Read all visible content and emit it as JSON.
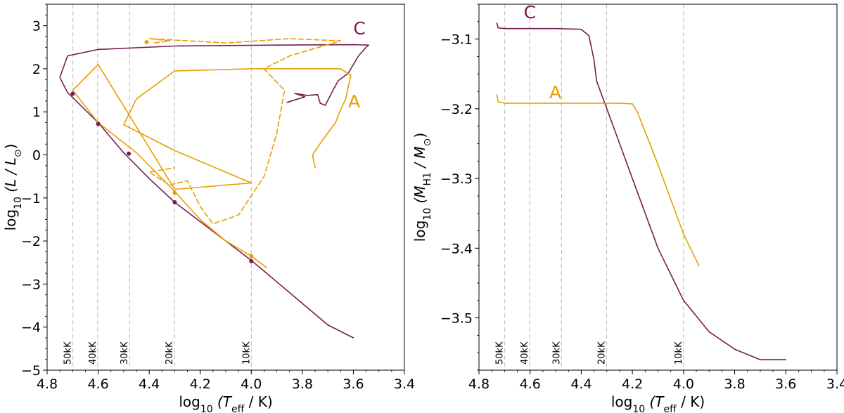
{
  "chart_data": [
    {
      "type": "line",
      "panel": "left",
      "xlabel_prefix": "log",
      "xlabel_sub": "10",
      "xlabel_body": " (T",
      "xlabel_body_sub": "eff",
      "xlabel_suffix": " / K)",
      "ylabel_prefix": "log",
      "ylabel_sub": "10",
      "ylabel_body": " (L / L",
      "ylabel_body_sub": "⊙",
      "ylabel_suffix": ")",
      "xlim": [
        4.8,
        3.4
      ],
      "ylim": [
        -5,
        3.5
      ],
      "xticks": [
        4.8,
        4.6,
        4.4,
        4.2,
        4.0,
        3.8,
        3.6,
        3.4
      ],
      "xtick_labels": [
        "4.8",
        "4.6",
        "4.4",
        "4.2",
        "4.0",
        "3.8",
        "3.6",
        "3.4"
      ],
      "yticks": [
        3,
        2,
        1,
        0,
        -1,
        -2,
        -3,
        -4,
        -5
      ],
      "ytick_labels": [
        "3",
        "2",
        "1",
        "0",
        "−1",
        "−2",
        "−3",
        "−4",
        "−5"
      ],
      "vlines": [
        {
          "x": 4.699,
          "label": "50kK"
        },
        {
          "x": 4.602,
          "label": "40kK"
        },
        {
          "x": 4.477,
          "label": "30kK"
        },
        {
          "x": 4.301,
          "label": "20kK"
        },
        {
          "x": 4.0,
          "label": "10kK"
        }
      ],
      "series": [
        {
          "name": "C",
          "color": "#7a1a50",
          "style": "solid",
          "label_pos": [
            3.6,
            2.8
          ],
          "x": [
            3.86,
            3.79,
            3.83,
            3.78,
            3.74,
            3.73,
            3.71,
            3.68,
            3.66,
            3.62,
            3.58,
            3.55,
            3.54,
            3.6,
            3.9,
            4.3,
            4.6,
            4.72,
            4.75,
            4.72,
            4.6,
            4.5,
            4.4,
            4.3,
            4.1,
            4.0,
            3.9,
            3.8,
            3.7,
            3.6
          ],
          "y": [
            1.22,
            1.35,
            1.43,
            1.38,
            1.4,
            1.2,
            1.15,
            1.5,
            1.72,
            1.9,
            2.3,
            2.5,
            2.55,
            2.56,
            2.55,
            2.53,
            2.45,
            2.3,
            1.8,
            1.45,
            0.75,
            0.05,
            -0.55,
            -1.1,
            -2.0,
            -2.45,
            -2.95,
            -3.45,
            -3.95,
            -4.25
          ]
        },
        {
          "name": "A",
          "color": "#e69f00",
          "style": "solid",
          "label_pos": [
            3.62,
            1.1
          ],
          "x": [
            3.75,
            3.76,
            3.72,
            3.67,
            3.65,
            3.63,
            3.61,
            3.65,
            4.0,
            4.3,
            4.45,
            4.5,
            4.3,
            4.0,
            4.3,
            4.6,
            4.7,
            4.6,
            4.45,
            4.3,
            4.2,
            4.1,
            4.0,
            3.94
          ],
          "y": [
            -0.3,
            0.0,
            0.35,
            0.75,
            1.05,
            1.3,
            1.85,
            2.0,
            2.0,
            1.95,
            1.3,
            0.7,
            0.1,
            -0.65,
            -0.8,
            2.1,
            1.5,
            0.75,
            0.05,
            -0.85,
            -1.5,
            -2.0,
            -2.35,
            -2.62
          ]
        },
        {
          "name": "A-dashed",
          "color": "#e69f00",
          "style": "dashed",
          "x": [
            4.38,
            4.32,
            4.4,
            4.1,
            3.85,
            3.65,
            3.85,
            3.95,
            3.87,
            3.9,
            3.95,
            4.05,
            4.15,
            4.2,
            4.25,
            4.32,
            4.4,
            4.3
          ],
          "y": [
            2.6,
            2.65,
            2.7,
            2.6,
            2.7,
            2.65,
            2.3,
            2.0,
            1.5,
            0.5,
            -0.5,
            -1.4,
            -1.6,
            -1.2,
            -0.6,
            -0.7,
            -0.4,
            -0.3
          ]
        }
      ],
      "markers": [
        {
          "series": "C",
          "x": 4.7,
          "y": 1.42
        },
        {
          "series": "C",
          "x": 4.6,
          "y": 0.72
        },
        {
          "series": "C",
          "x": 4.48,
          "y": 0.03
        },
        {
          "series": "C",
          "x": 4.3,
          "y": -1.1
        },
        {
          "series": "C",
          "x": 4.0,
          "y": -2.47
        },
        {
          "series": "A",
          "x": 4.3,
          "y": -0.88
        },
        {
          "series": "A",
          "x": 4.0,
          "y": -2.35
        },
        {
          "series": "A",
          "x": 4.41,
          "y": 2.62
        }
      ]
    },
    {
      "type": "line",
      "panel": "right",
      "xlabel_prefix": "log",
      "xlabel_sub": "10",
      "xlabel_body": " (T",
      "xlabel_body_sub": "eff",
      "xlabel_suffix": " / K)",
      "ylabel_prefix": "log",
      "ylabel_sub": "10",
      "ylabel_body": " (M",
      "ylabel_body_sub": "H1",
      "ylabel_mid": " / M",
      "ylabel_mid_sub": "⊙",
      "ylabel_suffix": ")",
      "xlim": [
        4.8,
        3.4
      ],
      "ylim": [
        -3.575,
        -3.05
      ],
      "xticks": [
        4.8,
        4.6,
        4.4,
        4.2,
        4.0,
        3.8,
        3.6,
        3.4
      ],
      "xtick_labels": [
        "4.8",
        "4.6",
        "4.4",
        "4.2",
        "4.0",
        "3.8",
        "3.6",
        "3.4"
      ],
      "yticks": [
        -3.1,
        -3.2,
        -3.3,
        -3.4,
        -3.5
      ],
      "ytick_labels": [
        "−3.1",
        "−3.2",
        "−3.3",
        "−3.4",
        "−3.5"
      ],
      "vlines": [
        {
          "x": 4.699,
          "label": "50kK"
        },
        {
          "x": 4.602,
          "label": "40kK"
        },
        {
          "x": 4.477,
          "label": "30kK"
        },
        {
          "x": 4.301,
          "label": "20kK"
        },
        {
          "x": 4.0,
          "label": "10kK"
        }
      ],
      "series": [
        {
          "name": "C",
          "color": "#7a1a50",
          "style": "solid",
          "label_pos": [
            4.625,
            -3.07
          ],
          "x": [
            4.73,
            4.725,
            4.7,
            4.6,
            4.5,
            4.4,
            4.37,
            4.35,
            4.34,
            4.3,
            4.2,
            4.1,
            4.0,
            3.9,
            3.8,
            3.7,
            3.6
          ],
          "y": [
            -3.077,
            -3.084,
            -3.085,
            -3.085,
            -3.085,
            -3.086,
            -3.095,
            -3.13,
            -3.16,
            -3.2,
            -3.3,
            -3.4,
            -3.475,
            -3.52,
            -3.545,
            -3.56,
            -3.56
          ]
        },
        {
          "name": "A",
          "color": "#e69f00",
          "style": "solid",
          "label_pos": [
            4.525,
            -3.185
          ],
          "x": [
            4.73,
            4.725,
            4.7,
            4.6,
            4.5,
            4.4,
            4.25,
            4.2,
            4.18,
            4.1,
            4.0,
            3.94
          ],
          "y": [
            -3.18,
            -3.19,
            -3.192,
            -3.192,
            -3.192,
            -3.192,
            -3.192,
            -3.193,
            -3.205,
            -3.28,
            -3.38,
            -3.425
          ]
        }
      ],
      "markers": []
    }
  ],
  "labels": {
    "left_c": "C",
    "left_a": "A",
    "right_c": "C",
    "right_a": "A"
  }
}
